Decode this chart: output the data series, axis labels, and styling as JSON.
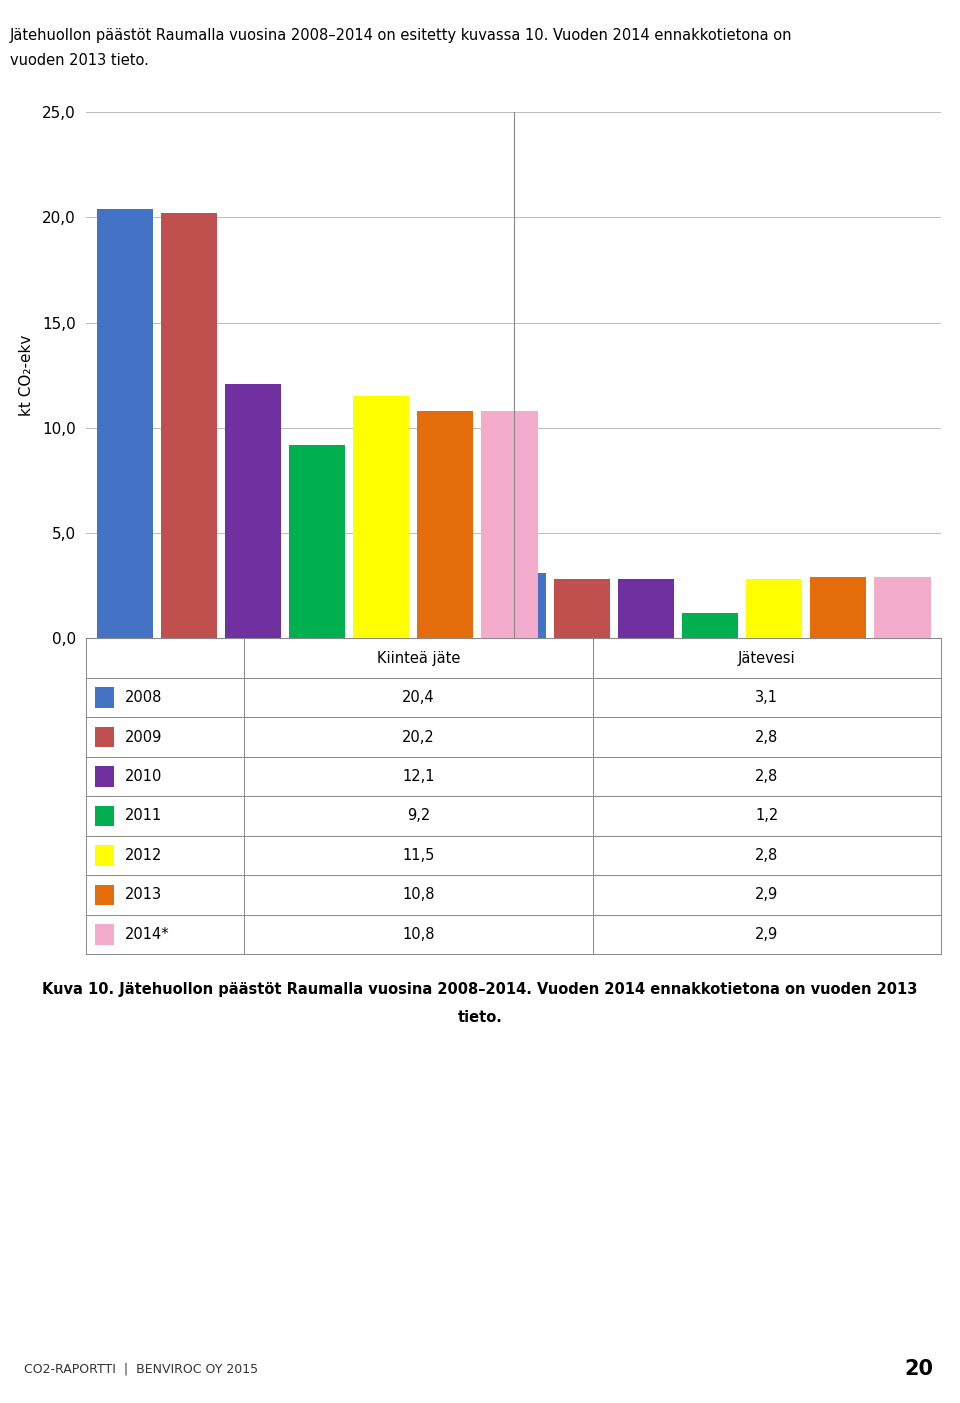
{
  "header_text": "Jätehuollon päästöt Raumalla vuosina 2008–2014 on esitetty kuvassa 10. Vuoden 2014 ennakkotietona on\nvuoden 2013 tieto.",
  "footer_text_line1": "Kuva 10. Jätehuollon päästöt Raumalla vuosina 2008–2014. Vuoden 2014 ennakkotietona on vuoden 2013",
  "footer_text_line2": "tieto.",
  "bottom_bar_text": "CO2-RAPORTTI  |  BENVIROC OY 2015",
  "bottom_number": "20",
  "ylabel": "kt CO₂-ekv",
  "categories": [
    "Kiinteä jäte",
    "Jätevesi"
  ],
  "years": [
    "2008",
    "2009",
    "2010",
    "2011",
    "2012",
    "2013",
    "2014*"
  ],
  "colors": [
    "#4472C4",
    "#C0504D",
    "#7030A0",
    "#00B050",
    "#FFFF00",
    "#E46C0A",
    "#F4ACCC"
  ],
  "kiintea_data": [
    20.4,
    20.2,
    12.1,
    9.2,
    11.5,
    10.8,
    10.8
  ],
  "jatevesi_data": [
    3.1,
    2.8,
    2.8,
    1.2,
    2.8,
    2.9,
    2.9
  ],
  "ylim": [
    0,
    25
  ],
  "yticks": [
    0.0,
    5.0,
    10.0,
    15.0,
    20.0,
    25.0
  ],
  "background_color": "#FFFFFF",
  "grid_color": "#BBBBBB",
  "border_color": "#888888",
  "footer_bg": "#BDD7EE"
}
